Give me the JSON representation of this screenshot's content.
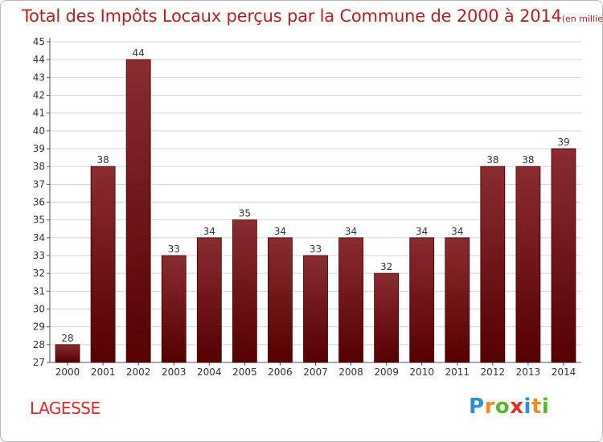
{
  "title": "Total des Impôts Locaux perçus par la Commune de 2000 à 2014",
  "title_unit": "(en milliers d'€)",
  "commune": "LAGESSE",
  "logo": {
    "text": "Proxiti",
    "letters": [
      {
        "ch": "P",
        "color": "#2f8fd6"
      },
      {
        "ch": "r",
        "color": "#f28a1d"
      },
      {
        "ch": "o",
        "color": "#5bb431"
      },
      {
        "ch": "x",
        "color": "#e0322a"
      },
      {
        "ch": "i",
        "color": "#2f8fd6"
      },
      {
        "ch": "t",
        "color": "#f28a1d"
      },
      {
        "ch": "i",
        "color": "#5bb431"
      }
    ]
  },
  "colors": {
    "title": "#b32020",
    "commune": "#d92a2a",
    "bar_top": "#8a2c30",
    "bar_bottom": "#560000",
    "bar_edge": "#3a0000",
    "grid": "#d4d4d4"
  },
  "chart_data": {
    "type": "bar",
    "categories": [
      "2000",
      "2001",
      "2002",
      "2003",
      "2004",
      "2005",
      "2006",
      "2007",
      "2008",
      "2009",
      "2010",
      "2011",
      "2012",
      "2013",
      "2014"
    ],
    "values": [
      28,
      38,
      44,
      33,
      34,
      35,
      34,
      33,
      34,
      32,
      34,
      34,
      38,
      38,
      39
    ],
    "data_labels": [
      "28",
      "38",
      "44",
      "33",
      "34",
      "35",
      "34",
      "33",
      "34",
      "32",
      "34",
      "34",
      "38",
      "38",
      "39"
    ],
    "title": "Total des Impôts Locaux perçus par la Commune de 2000 à 2014",
    "xlabel": "",
    "ylabel": "",
    "ylim": [
      27,
      45
    ],
    "yticks": [
      "27",
      "28",
      "29",
      "30",
      "31",
      "32",
      "33",
      "34",
      "35",
      "36",
      "37",
      "38",
      "39",
      "40",
      "41",
      "42",
      "43",
      "44",
      "45"
    ],
    "grid": true
  }
}
